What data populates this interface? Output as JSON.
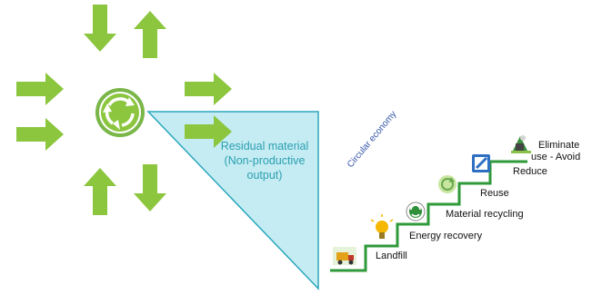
{
  "residual": {
    "line1": "Residual material",
    "line2": "(Non-productive",
    "line3": "output)"
  },
  "circular_label": "Circular economy",
  "steps": [
    {
      "label": "Landfill",
      "icon": "truck-icon"
    },
    {
      "label": "Energy recovery",
      "icon": "lightbulb-icon"
    },
    {
      "label": "Material recycling",
      "icon": "recycle-icon"
    },
    {
      "label": "Reuse",
      "icon": "reuse-icon"
    },
    {
      "label": "Reduce",
      "icon": "reduce-icon"
    },
    {
      "label": "Eliminate",
      "label2": "use - Avoid",
      "icon": "eliminate-icon"
    }
  ],
  "colors": {
    "arrow": "#8cc63f",
    "triangle": "#c5ecf3",
    "triangle_edge": "#2aa7bd",
    "stair": "#2e9a3a",
    "residual_text": "#2a9fb0",
    "circular_text": "#3355aa"
  }
}
